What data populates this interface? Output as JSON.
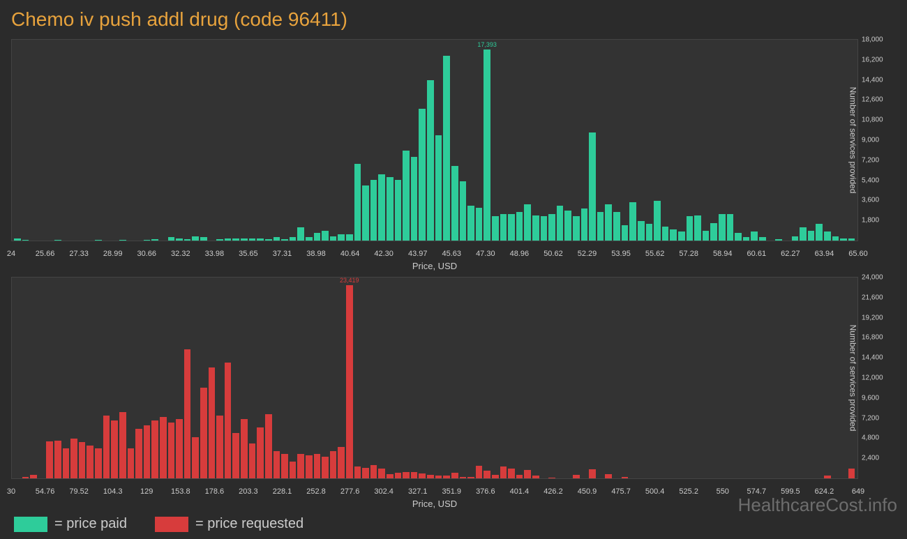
{
  "title": "Chemo iv push addl drug (code 96411)",
  "background_color": "#2b2b2b",
  "panel_color": "#333333",
  "text_color": "#cccccc",
  "title_color": "#e8a33d",
  "watermark": "HealthcareCost.info",
  "watermark_color": "#6d6d6d",
  "legend": [
    {
      "color": "#2ecc9a",
      "label": "= price paid"
    },
    {
      "color": "#d73c3c",
      "label": "= price requested"
    }
  ],
  "charts": [
    {
      "id": "paid",
      "type": "histogram",
      "bar_color": "#2ecc9a",
      "peak_label_color": "#2ecc9a",
      "xlabel": "Price, USD",
      "ylabel": "Number of services provided",
      "x_ticks": [
        "24",
        "25.66",
        "27.33",
        "28.99",
        "30.66",
        "32.32",
        "33.98",
        "35.65",
        "37.31",
        "38.98",
        "40.64",
        "42.30",
        "43.97",
        "45.63",
        "47.30",
        "48.96",
        "50.62",
        "52.29",
        "53.95",
        "55.62",
        "57.28",
        "58.94",
        "60.61",
        "62.27",
        "63.94",
        "65.60"
      ],
      "y_ticks": [
        "1,800",
        "3,600",
        "5,400",
        "7,200",
        "9,000",
        "10,800",
        "12,600",
        "14,400",
        "16,200",
        "18,000"
      ],
      "y_max": 18000,
      "peak": {
        "index": 58,
        "label": "17,393"
      },
      "values": [
        200,
        50,
        0,
        0,
        0,
        50,
        0,
        0,
        0,
        0,
        50,
        0,
        0,
        50,
        0,
        0,
        50,
        100,
        0,
        300,
        200,
        100,
        400,
        300,
        0,
        100,
        200,
        200,
        200,
        200,
        200,
        100,
        300,
        100,
        300,
        1200,
        300,
        700,
        900,
        400,
        600,
        600,
        7000,
        5000,
        5500,
        6000,
        5800,
        5500,
        8200,
        7600,
        12000,
        14600,
        9600,
        16800,
        6800,
        5400,
        3200,
        3000,
        17393,
        2200,
        2400,
        2400,
        2600,
        3300,
        2300,
        2200,
        2400,
        3200,
        2700,
        2200,
        2900,
        9800,
        2600,
        3300,
        2600,
        1400,
        3500,
        1800,
        1500,
        3600,
        1300,
        1000,
        800,
        2200,
        2300,
        900,
        1600,
        2400,
        2400,
        700,
        300,
        800,
        300,
        0,
        100,
        0,
        400,
        1200,
        900,
        1500,
        800,
        400,
        200,
        200
      ]
    },
    {
      "id": "requested",
      "type": "histogram",
      "bar_color": "#d73c3c",
      "peak_label_color": "#d73c3c",
      "xlabel": "Price, USD",
      "ylabel": "Number of services provided",
      "x_ticks": [
        "30",
        "54.76",
        "79.52",
        "104.3",
        "129",
        "153.8",
        "178.6",
        "203.3",
        "228.1",
        "252.8",
        "277.6",
        "302.4",
        "327.1",
        "351.9",
        "376.6",
        "401.4",
        "426.2",
        "450.9",
        "475.7",
        "500.4",
        "525.2",
        "550",
        "574.7",
        "599.5",
        "624.2",
        "649"
      ],
      "y_ticks": [
        "2,400",
        "4,800",
        "7,200",
        "9,600",
        "12,000",
        "14,400",
        "16,800",
        "19,200",
        "21,600",
        "24,000"
      ],
      "y_max": 24000,
      "peak": {
        "index": 41,
        "label": "23,419"
      },
      "values": [
        0,
        200,
        400,
        0,
        4500,
        4600,
        3600,
        4800,
        4400,
        4000,
        3600,
        7600,
        7000,
        8000,
        3600,
        6000,
        6400,
        7000,
        7400,
        6800,
        7200,
        15600,
        5000,
        11000,
        13400,
        7600,
        14000,
        5500,
        7200,
        4200,
        6200,
        7800,
        3300,
        3000,
        2000,
        3000,
        2800,
        3000,
        2600,
        3300,
        3800,
        23419,
        1400,
        1300,
        1600,
        1200,
        500,
        700,
        800,
        800,
        600,
        400,
        300,
        300,
        700,
        200,
        200,
        1500,
        900,
        400,
        1400,
        1200,
        400,
        1000,
        300,
        0,
        100,
        0,
        0,
        400,
        0,
        1100,
        0,
        500,
        0,
        200,
        0,
        0,
        0,
        0,
        0,
        0,
        0,
        0,
        0,
        0,
        0,
        0,
        0,
        0,
        0,
        0,
        0,
        0,
        0,
        0,
        0,
        0,
        0,
        0,
        300,
        0,
        0,
        1200
      ]
    }
  ]
}
